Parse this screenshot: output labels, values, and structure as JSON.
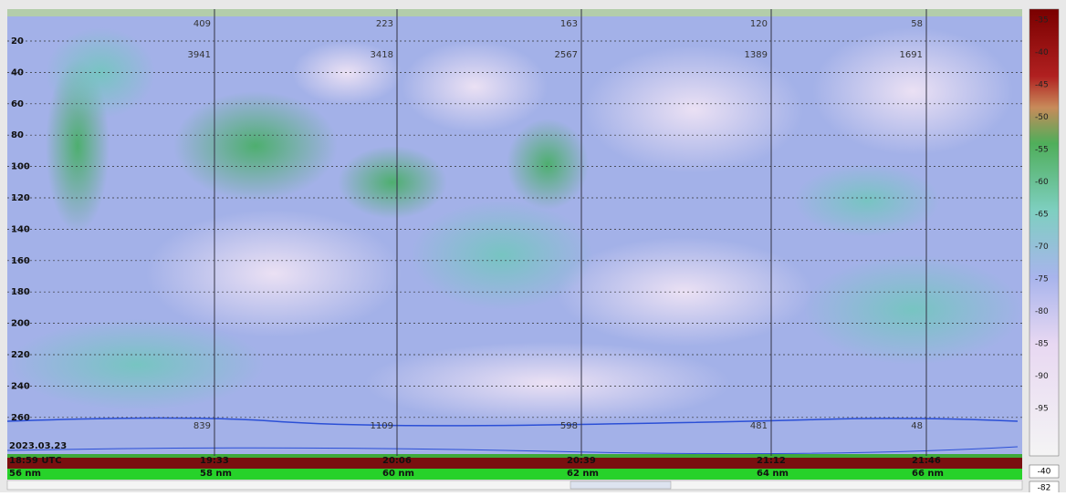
{
  "depth_labels": [
    "20",
    "40",
    "60",
    "80",
    "100",
    "120",
    "140",
    "160",
    "180",
    "200",
    "220",
    "240",
    "260"
  ],
  "top_counts": [
    "409",
    "223",
    "163",
    "120",
    "58"
  ],
  "top_values": [
    "3941",
    "3418",
    "2567",
    "1389",
    "1691"
  ],
  "bottom_values": [
    "839",
    "1109",
    "598",
    "481",
    "48"
  ],
  "date": "2023.03.23",
  "times": [
    "18:59 UTC",
    "19:33",
    "20:06",
    "20:39",
    "21:12",
    "21:46"
  ],
  "distances": [
    "56 nm",
    "58 nm",
    "60 nm",
    "62 nm",
    "64 nm",
    "66 nm"
  ],
  "color_scale": [
    "-35",
    "-40",
    "-45",
    "-50",
    "-55",
    "-60",
    "-65",
    "-70",
    "-75",
    "-80",
    "-85",
    "-90",
    "-95"
  ],
  "scale_boxes": [
    "-40",
    "-82"
  ]
}
